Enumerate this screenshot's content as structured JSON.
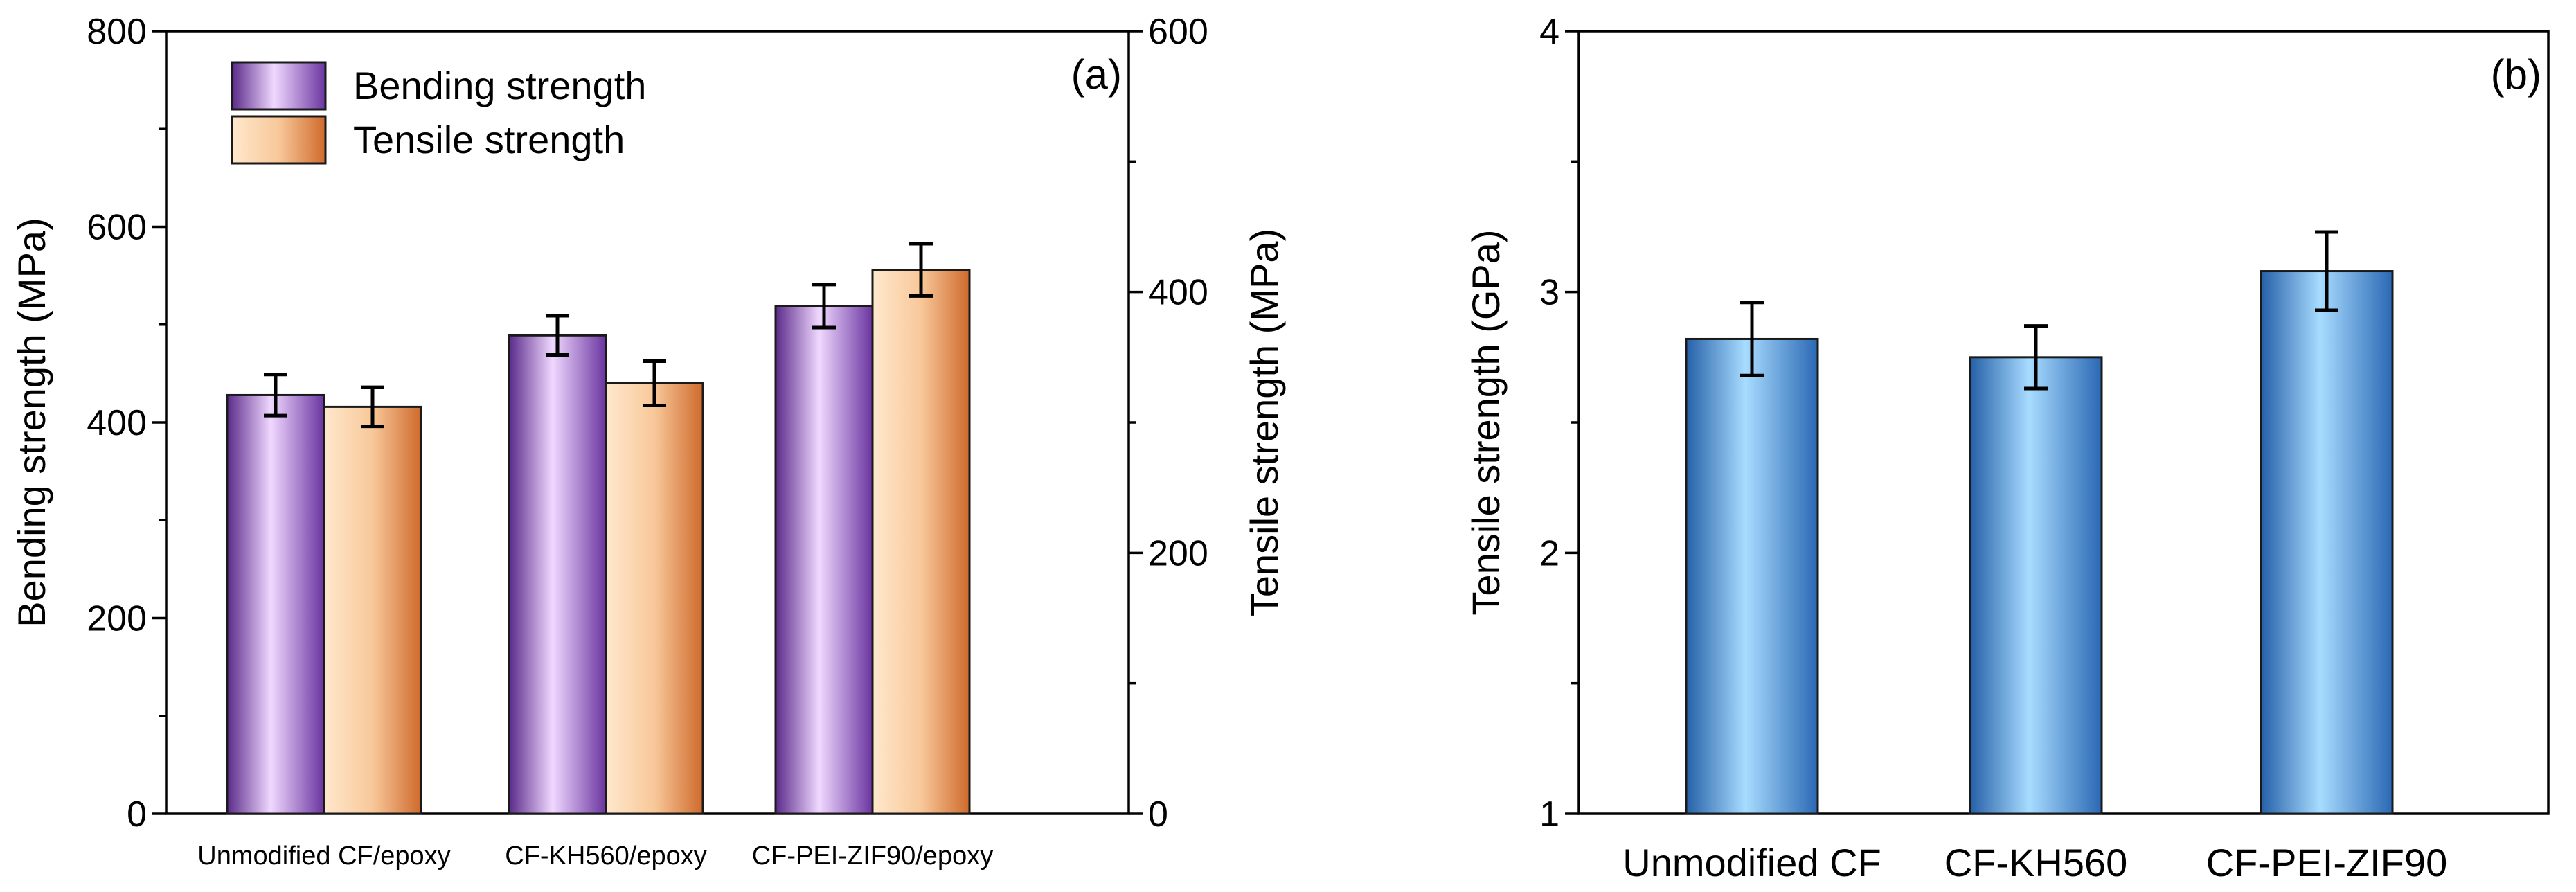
{
  "chart_data": [
    {
      "type": "bar",
      "panel_label": "(a)",
      "categories": [
        "Unmodified CF/epoxy",
        "CF-KH560/epoxy",
        "CF-PEI-ZIF90/epoxy"
      ],
      "ylabel": "Bending strength (MPa)",
      "ylabel_right": "Tensile strength (MPa)",
      "ylim": [
        0,
        800
      ],
      "ylim_right": [
        0,
        600
      ],
      "yticks": [
        "0",
        "200",
        "400",
        "600",
        "800"
      ],
      "yticks_right": [
        "0",
        "200",
        "400",
        "600"
      ],
      "series": [
        {
          "name": "Bending strength",
          "axis": "left",
          "values": [
            428,
            489,
            519
          ],
          "errors": [
            21,
            20,
            22
          ],
          "color": "#7a3fb0",
          "color_light": "#f0d8ff"
        },
        {
          "name": "Tensile strength",
          "axis": "right",
          "values": [
            312,
            330,
            417
          ],
          "errors": [
            15,
            17,
            20
          ],
          "color": "#d9783a",
          "color_light": "#ffe8cc"
        }
      ]
    },
    {
      "type": "bar",
      "panel_label": "(b)",
      "categories": [
        "Unmodified CF",
        "CF-KH560",
        "CF-PEI-ZIF90"
      ],
      "ylabel": "Tensile strength (GPa)",
      "ylim": [
        1,
        4
      ],
      "yticks": [
        "1",
        "2",
        "3",
        "4"
      ],
      "series": [
        {
          "name": "Tensile strength",
          "values": [
            2.82,
            2.75,
            3.08
          ],
          "errors": [
            0.14,
            0.12,
            0.15
          ],
          "color": "#2f73c0",
          "color_light": "#a8dcff"
        }
      ]
    }
  ]
}
